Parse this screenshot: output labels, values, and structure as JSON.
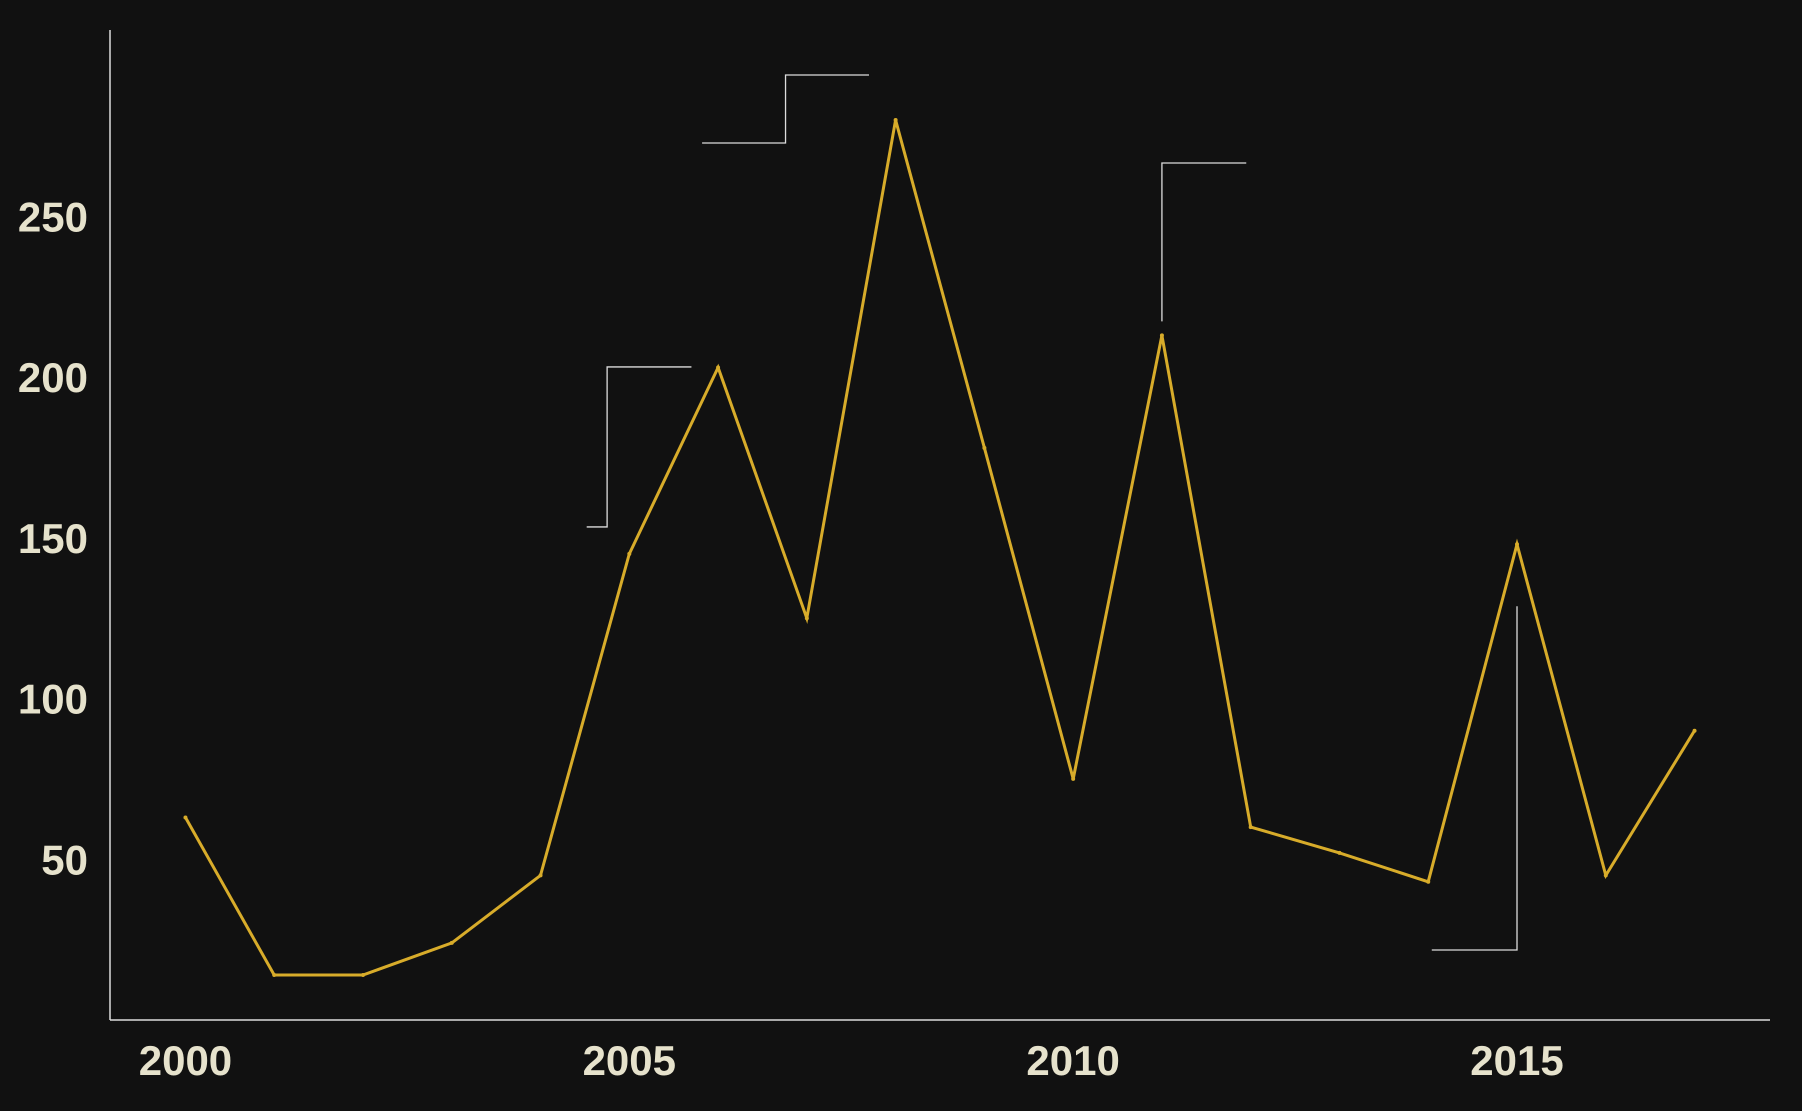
{
  "chart_data": {
    "type": "line",
    "title": "",
    "xlabel": "",
    "ylabel": "",
    "xlim": [
      1999.15,
      2017.85
    ],
    "ylim": [
      0,
      308
    ],
    "x_ticks": [
      2000,
      2005,
      2010,
      2015
    ],
    "x_tick_labels": [
      "2000",
      "2005",
      "2010",
      "2015"
    ],
    "y_ticks": [
      50,
      100,
      150,
      200,
      250
    ],
    "y_tick_labels": [
      "50",
      "100",
      "150",
      "200",
      "250"
    ],
    "grid": false,
    "legend": "none",
    "colors": {
      "background": "#111111",
      "line": "#D8AC2A",
      "axis": "#DDDDDD",
      "tick_label": "#E6E2CC",
      "annotation": "#DDDDDD"
    },
    "series": [
      {
        "x": [
          2000,
          2001,
          2002,
          2003,
          2004,
          2005,
          2006,
          2007,
          2008,
          2009,
          2010,
          2011,
          2012,
          2013,
          2014,
          2015,
          2016,
          2017
        ],
        "y": [
          63,
          14,
          14,
          24,
          45,
          145,
          203,
          125,
          280,
          178,
          75,
          213,
          60,
          52,
          43,
          148,
          45,
          90
        ]
      }
    ],
    "annotations": [
      {
        "x": 2005,
        "y": 145
      },
      {
        "x": 2007,
        "y": 125
      },
      {
        "x": 2011,
        "y": 213
      },
      {
        "x": 2015,
        "y": 148
      }
    ]
  }
}
